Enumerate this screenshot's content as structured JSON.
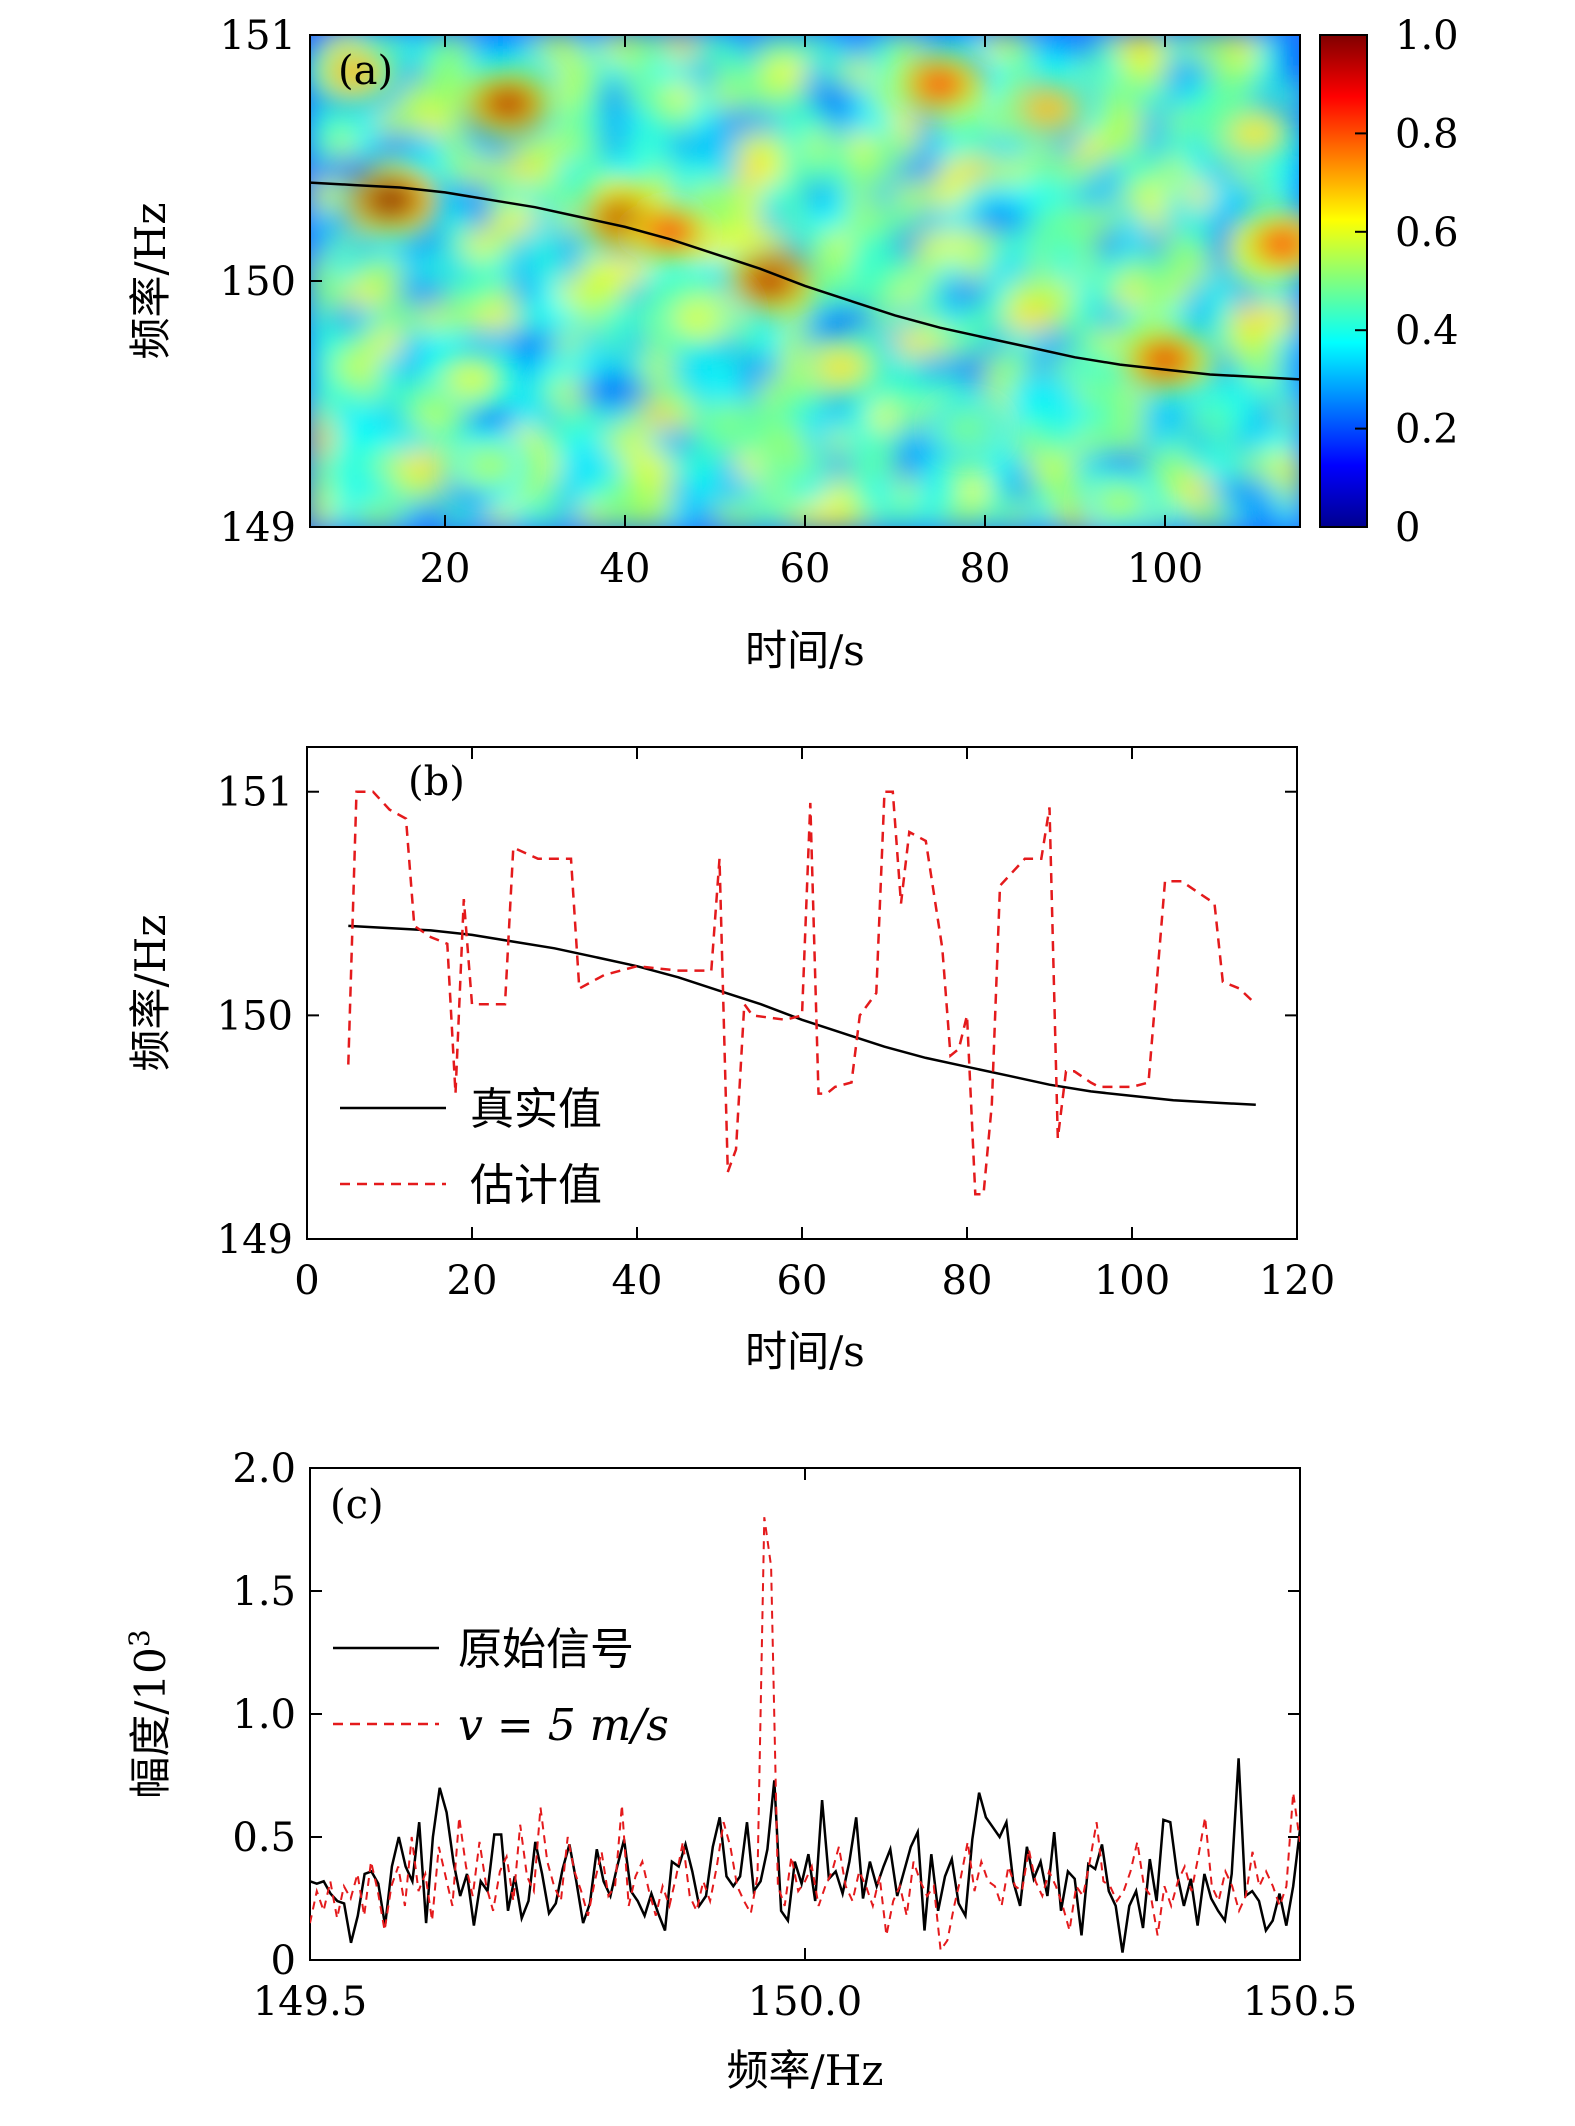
{
  "chart_data": [
    {
      "panel": "(a)",
      "type": "heatmap",
      "xlabel": "时间/s",
      "ylabel": "频率/Hz",
      "xlim": [
        5,
        115
      ],
      "ylim": [
        149,
        151
      ],
      "xticks": [
        20,
        40,
        60,
        80,
        100
      ],
      "yticks": [
        149,
        150,
        151
      ],
      "colorbar": {
        "range": [
          0,
          1.0
        ],
        "ticks": [
          "0",
          "0.2",
          "0.4",
          "0.6",
          "0.8",
          "1.0"
        ]
      },
      "overlay_curve": {
        "x": [
          5,
          10,
          15,
          20,
          25,
          30,
          35,
          40,
          45,
          50,
          55,
          60,
          65,
          70,
          75,
          80,
          85,
          90,
          95,
          100,
          105,
          110,
          115
        ],
        "y": [
          150.4,
          150.39,
          150.38,
          150.36,
          150.33,
          150.3,
          150.26,
          150.22,
          150.17,
          150.11,
          150.05,
          149.98,
          149.92,
          149.86,
          149.81,
          149.77,
          149.73,
          149.69,
          149.66,
          149.64,
          149.62,
          149.61,
          149.6
        ]
      },
      "hotspots": [
        {
          "x": 14,
          "y": 150.33,
          "v": 1.0
        },
        {
          "x": 27,
          "y": 150.72,
          "v": 0.95
        },
        {
          "x": 40,
          "y": 150.25,
          "v": 0.95
        },
        {
          "x": 45,
          "y": 150.2,
          "v": 0.85
        },
        {
          "x": 56,
          "y": 150.0,
          "v": 0.95
        },
        {
          "x": 75,
          "y": 150.8,
          "v": 0.85
        },
        {
          "x": 100,
          "y": 149.68,
          "v": 0.9
        },
        {
          "x": 113,
          "y": 150.15,
          "v": 0.85
        },
        {
          "x": 87,
          "y": 150.7,
          "v": 0.7
        },
        {
          "x": 10,
          "y": 150.85,
          "v": 0.7
        },
        {
          "x": 64,
          "y": 149.65,
          "v": 0.65
        },
        {
          "x": 23,
          "y": 149.6,
          "v": 0.6
        },
        {
          "x": 48,
          "y": 149.85,
          "v": 0.6
        },
        {
          "x": 110,
          "y": 150.6,
          "v": 0.65
        },
        {
          "x": 25,
          "y": 149.25,
          "v": 0.55
        },
        {
          "x": 78,
          "y": 149.4,
          "v": 0.5
        },
        {
          "x": 95,
          "y": 149.1,
          "v": 0.55
        }
      ]
    },
    {
      "panel": "(b)",
      "type": "line",
      "xlabel": "时间/s",
      "ylabel": "频率/Hz",
      "xlim": [
        0,
        120
      ],
      "ylim": [
        149,
        151.2
      ],
      "xticks": [
        0,
        20,
        40,
        60,
        80,
        100,
        120
      ],
      "yticks": [
        149,
        150,
        151
      ],
      "legend": "bottom-left",
      "series": [
        {
          "name": "真实值",
          "style": "solid",
          "color": "#000000",
          "x": [
            5,
            10,
            15,
            20,
            25,
            30,
            35,
            40,
            45,
            50,
            55,
            60,
            65,
            70,
            75,
            80,
            85,
            90,
            95,
            100,
            105,
            110,
            115
          ],
          "y": [
            150.4,
            150.39,
            150.38,
            150.36,
            150.33,
            150.3,
            150.26,
            150.22,
            150.17,
            150.11,
            150.05,
            149.98,
            149.92,
            149.86,
            149.81,
            149.77,
            149.73,
            149.69,
            149.66,
            149.64,
            149.62,
            149.61,
            149.6
          ]
        },
        {
          "name": "估计值",
          "style": "dashed",
          "color": "#e41a1c",
          "x": [
            5,
            6,
            8,
            10,
            12,
            13,
            15,
            17,
            18,
            19,
            20,
            21,
            24,
            25,
            28,
            32,
            33,
            36,
            40,
            45,
            49,
            50,
            51,
            52,
            53,
            54,
            58,
            60,
            61,
            62,
            63,
            64,
            66,
            67,
            69,
            70,
            71,
            72,
            73,
            74,
            75,
            77,
            78,
            79,
            80,
            81,
            82,
            83,
            84,
            85,
            87,
            89,
            90,
            91,
            92,
            93,
            95,
            96,
            100,
            102,
            103,
            104,
            106,
            108,
            110,
            111,
            113,
            115
          ],
          "y": [
            149.78,
            151.0,
            151.0,
            150.92,
            150.88,
            150.4,
            150.35,
            150.32,
            149.65,
            150.52,
            150.05,
            150.05,
            150.05,
            150.75,
            150.7,
            150.7,
            150.12,
            150.18,
            150.22,
            150.2,
            150.2,
            150.7,
            149.3,
            149.4,
            150.05,
            150.0,
            149.98,
            150.0,
            150.95,
            149.65,
            149.65,
            149.68,
            149.7,
            150.0,
            150.1,
            151.0,
            151.0,
            150.5,
            150.82,
            150.8,
            150.78,
            150.3,
            149.82,
            149.85,
            150.0,
            149.2,
            149.2,
            149.6,
            150.58,
            150.62,
            150.7,
            150.7,
            150.93,
            149.45,
            149.75,
            149.75,
            149.7,
            149.68,
            149.68,
            149.7,
            150.15,
            150.6,
            150.6,
            150.55,
            150.5,
            150.15,
            150.12,
            150.05
          ]
        }
      ]
    },
    {
      "panel": "(c)",
      "type": "line",
      "xlabel": "频率/Hz",
      "ylabel": "幅度/10",
      "ylabel_sup": "3",
      "xlim": [
        149.5,
        150.5
      ],
      "ylim": [
        0,
        2.0
      ],
      "xticks": [
        "149.5",
        "150.0",
        "150.5"
      ],
      "yticks": [
        "0",
        "0.5",
        "1.0",
        "1.5",
        "2.0"
      ],
      "legend": "middle-left",
      "series": [
        {
          "name": "原始信号",
          "style": "solid",
          "color": "#000000",
          "y": [
            0.32,
            0.31,
            0.32,
            0.27,
            0.24,
            0.23,
            0.07,
            0.18,
            0.35,
            0.36,
            0.31,
            0.14,
            0.38,
            0.5,
            0.38,
            0.32,
            0.56,
            0.15,
            0.5,
            0.7,
            0.6,
            0.4,
            0.26,
            0.35,
            0.14,
            0.32,
            0.28,
            0.51,
            0.51,
            0.2,
            0.34,
            0.17,
            0.24,
            0.48,
            0.35,
            0.19,
            0.23,
            0.37,
            0.47,
            0.32,
            0.15,
            0.23,
            0.45,
            0.32,
            0.26,
            0.38,
            0.49,
            0.28,
            0.24,
            0.18,
            0.27,
            0.19,
            0.12,
            0.4,
            0.38,
            0.47,
            0.36,
            0.22,
            0.26,
            0.46,
            0.58,
            0.34,
            0.3,
            0.34,
            0.56,
            0.28,
            0.32,
            0.45,
            0.73,
            0.2,
            0.16,
            0.4,
            0.31,
            0.43,
            0.24,
            0.65,
            0.33,
            0.36,
            0.27,
            0.4,
            0.58,
            0.25,
            0.4,
            0.3,
            0.38,
            0.45,
            0.26,
            0.36,
            0.46,
            0.52,
            0.12,
            0.43,
            0.2,
            0.34,
            0.41,
            0.23,
            0.18,
            0.49,
            0.68,
            0.58,
            0.54,
            0.5,
            0.56,
            0.32,
            0.22,
            0.46,
            0.33,
            0.4,
            0.26,
            0.52,
            0.2,
            0.36,
            0.33,
            0.1,
            0.39,
            0.37,
            0.47,
            0.28,
            0.22,
            0.03,
            0.22,
            0.28,
            0.13,
            0.41,
            0.24,
            0.57,
            0.56,
            0.35,
            0.22,
            0.33,
            0.14,
            0.35,
            0.25,
            0.2,
            0.16,
            0.35,
            0.82,
            0.26,
            0.28,
            0.24,
            0.12,
            0.16,
            0.27,
            0.14,
            0.3,
            0.53
          ]
        },
        {
          "name": "v = 5 m/s",
          "style": "dashed",
          "color": "#e41a1c",
          "y": [
            0.15,
            0.28,
            0.2,
            0.32,
            0.17,
            0.3,
            0.25,
            0.35,
            0.18,
            0.4,
            0.28,
            0.12,
            0.3,
            0.38,
            0.22,
            0.5,
            0.28,
            0.35,
            0.16,
            0.46,
            0.34,
            0.22,
            0.58,
            0.38,
            0.26,
            0.48,
            0.3,
            0.2,
            0.36,
            0.42,
            0.24,
            0.55,
            0.34,
            0.28,
            0.62,
            0.4,
            0.3,
            0.24,
            0.5,
            0.36,
            0.28,
            0.18,
            0.32,
            0.44,
            0.26,
            0.3,
            0.63,
            0.22,
            0.34,
            0.4,
            0.28,
            0.18,
            0.3,
            0.22,
            0.34,
            0.48,
            0.26,
            0.2,
            0.32,
            0.24,
            0.38,
            0.56,
            0.46,
            0.3,
            0.24,
            0.19,
            0.34,
            1.8,
            1.6,
            0.3,
            0.22,
            0.42,
            0.28,
            0.32,
            0.38,
            0.22,
            0.3,
            0.36,
            0.46,
            0.3,
            0.24,
            0.36,
            0.3,
            0.22,
            0.34,
            0.1,
            0.24,
            0.3,
            0.18,
            0.4,
            0.32,
            0.26,
            0.3,
            0.04,
            0.08,
            0.22,
            0.34,
            0.48,
            0.28,
            0.4,
            0.32,
            0.3,
            0.22,
            0.38,
            0.3,
            0.28,
            0.45,
            0.32,
            0.26,
            0.36,
            0.3,
            0.22,
            0.12,
            0.3,
            0.26,
            0.4,
            0.56,
            0.32,
            0.3,
            0.24,
            0.28,
            0.36,
            0.48,
            0.3,
            0.26,
            0.1,
            0.3,
            0.22,
            0.32,
            0.38,
            0.28,
            0.42,
            0.58,
            0.3,
            0.24,
            0.36,
            0.3,
            0.2,
            0.26,
            0.44,
            0.3,
            0.36,
            0.3,
            0.22,
            0.3,
            0.68,
            0.48
          ]
        }
      ]
    }
  ]
}
